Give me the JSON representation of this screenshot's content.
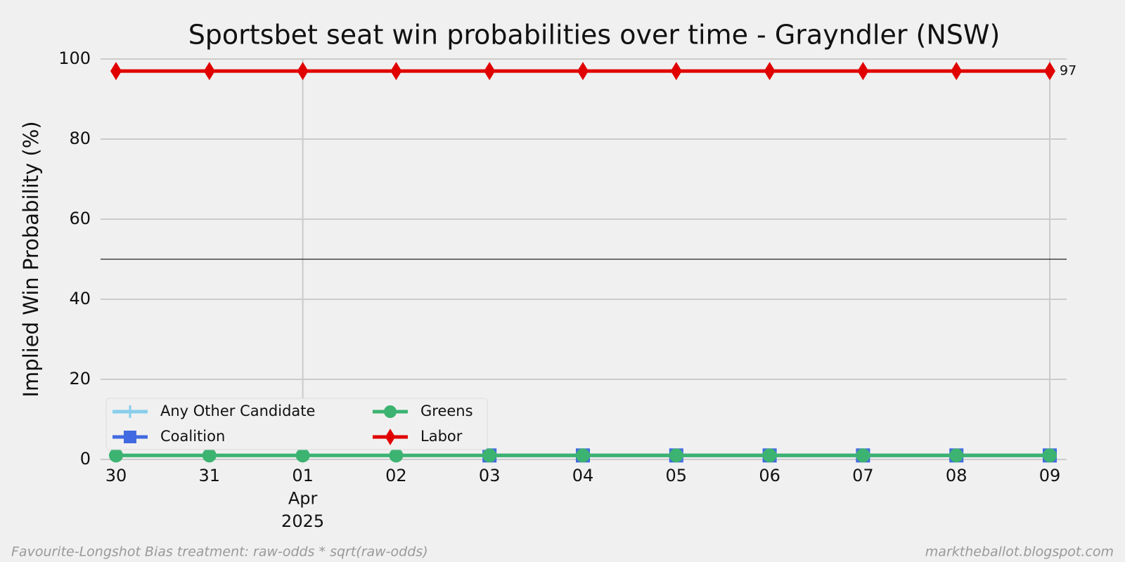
{
  "chart_data": {
    "type": "line",
    "title": "Sportsbet seat win probabilities over time - Grayndler (NSW)",
    "ylabel": "Implied Win Probability (%)",
    "categories": [
      "30",
      "31",
      "01\nApr\n2025",
      "02",
      "03",
      "04",
      "05",
      "06",
      "07",
      "08",
      "09"
    ],
    "series": [
      {
        "name": "Any Other Candidate",
        "color": "#87ceeb",
        "marker": "plus",
        "values": [
          1,
          1,
          1,
          1,
          null,
          null,
          null,
          null,
          null,
          null,
          null
        ]
      },
      {
        "name": "Coalition",
        "color": "#4169e1",
        "marker": "square",
        "values": [
          null,
          null,
          null,
          null,
          1,
          1,
          1,
          1,
          1,
          1,
          1
        ]
      },
      {
        "name": "Greens",
        "color": "#3cb371",
        "marker": "circle",
        "values": [
          1,
          1,
          1,
          1,
          1,
          1,
          1,
          1,
          1,
          1,
          1
        ]
      },
      {
        "name": "Labor",
        "color": "#e00000",
        "marker": "diamond",
        "values": [
          97,
          97,
          97,
          97,
          97,
          97,
          97,
          97,
          97,
          97,
          97
        ]
      }
    ],
    "ylim": [
      0,
      100
    ],
    "yticks": [
      0,
      20,
      40,
      60,
      80,
      100
    ],
    "grid": true,
    "hline": 50,
    "annotation": {
      "text": "97",
      "y": 97
    },
    "legend": "lower left",
    "footer_left": "Favourite-Longshot Bias treatment: raw-odds * sqrt(raw-odds)",
    "footer_right": "marktheballot.blogspot.com"
  }
}
